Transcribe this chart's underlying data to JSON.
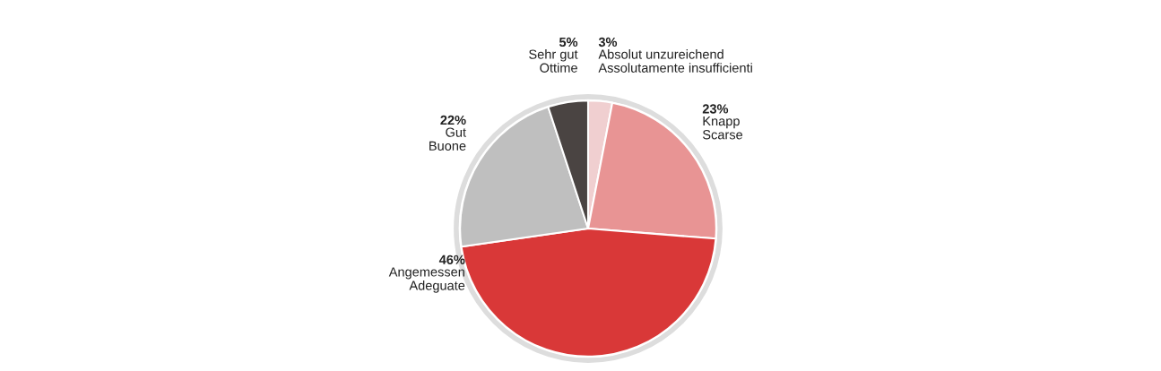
{
  "chart_data": {
    "type": "pie",
    "categories": [
      "Absolut unzureichend\nAssolutamente insufficienti",
      "Knapp\nScarse",
      "Angemessen\nAdeguate",
      "Gut\nBuone",
      "Sehr gut\nOttime"
    ],
    "values": [
      3,
      23,
      46,
      22,
      5
    ],
    "value_labels": [
      "3%",
      "23%",
      "46%",
      "22%",
      "5%"
    ],
    "colors": [
      "#f0cfd0",
      "#e89494",
      "#d93838",
      "#bfbfbf",
      "#4a4442"
    ]
  }
}
